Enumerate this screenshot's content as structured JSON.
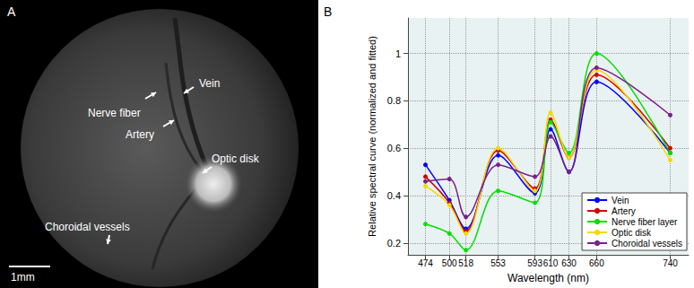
{
  "panel_a": {
    "label": "A",
    "annotations": [
      {
        "text": "Nerve fiber"
      },
      {
        "text": "Vein"
      },
      {
        "text": "Artery"
      },
      {
        "text": "Optic disk"
      },
      {
        "text": "Choroidal vessels"
      }
    ],
    "scale_bar": "1mm"
  },
  "chart_data": {
    "type": "line",
    "panel_label": "B",
    "x_label": "Wavelength (nm)",
    "y_label": "Relative spectral curve (normalized and fitted)",
    "x": [
      474,
      500,
      518,
      553,
      593,
      610,
      630,
      660,
      740
    ],
    "xlim": [
      455,
      760
    ],
    "xticks": [
      474,
      500,
      518,
      553,
      593,
      610,
      630,
      660,
      740
    ],
    "ylim": [
      0.15,
      1.15
    ],
    "yticks": [
      0.2,
      0.4,
      0.6,
      0.8,
      1
    ],
    "grid": true,
    "legend": "bottom-right",
    "marker": "circle",
    "line_style": "solid",
    "series": [
      {
        "name": "Vein",
        "color": "#0000ff",
        "values": [
          0.53,
          0.38,
          0.26,
          0.57,
          0.41,
          0.68,
          0.5,
          0.88,
          0.58
        ]
      },
      {
        "name": "Artery",
        "color": "#d40000",
        "values": [
          0.48,
          0.37,
          0.25,
          0.59,
          0.43,
          0.72,
          0.56,
          0.91,
          0.6
        ]
      },
      {
        "name": "Nerve fiber layer",
        "color": "#00e000",
        "values": [
          0.28,
          0.24,
          0.17,
          0.42,
          0.37,
          0.71,
          0.58,
          1.0,
          0.58
        ]
      },
      {
        "name": "Optic disk",
        "color": "#f5d800",
        "values": [
          0.44,
          0.36,
          0.24,
          0.6,
          0.42,
          0.75,
          0.56,
          0.93,
          0.55
        ]
      },
      {
        "name": "Choroidal vessels",
        "color": "#7b1f8c",
        "values": [
          0.46,
          0.47,
          0.31,
          0.53,
          0.48,
          0.65,
          0.5,
          0.94,
          0.74
        ]
      }
    ]
  }
}
